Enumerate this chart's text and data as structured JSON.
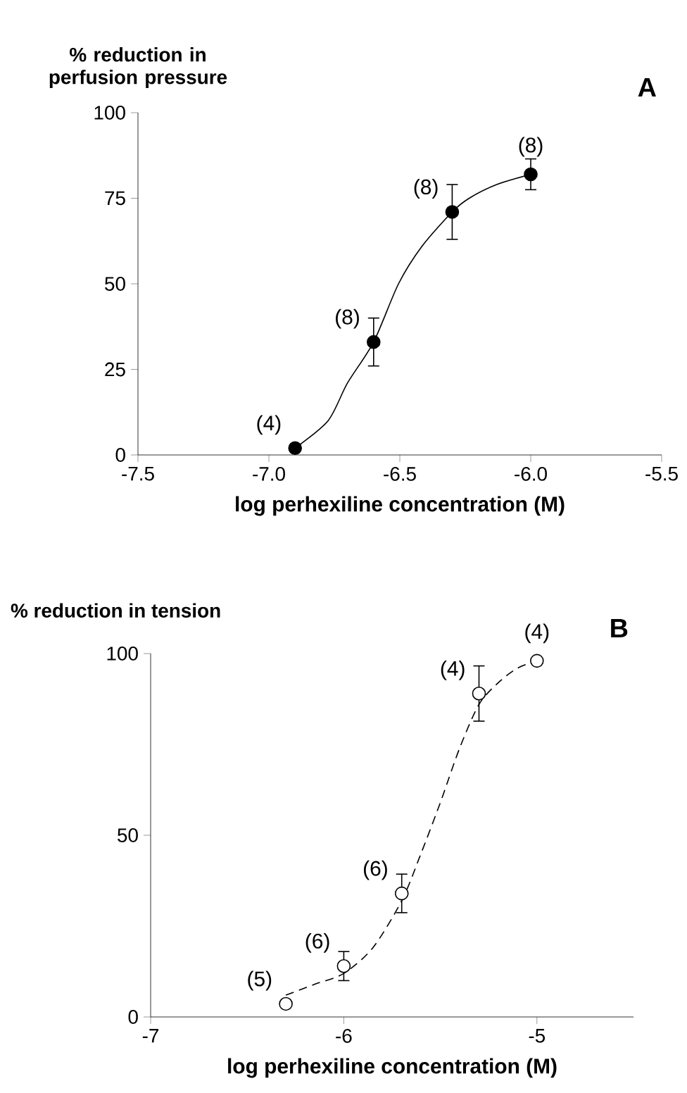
{
  "chart_data": [
    {
      "type": "scatter",
      "ylabel": "% reduction in perfusion pressure",
      "xlabel": "log perhexiline concentration (M)",
      "xlim": [
        -7.5,
        -5.5
      ],
      "ylim": [
        0,
        100
      ],
      "xticks": [
        {
          "value": -7.5,
          "label": "-7.5"
        },
        {
          "value": -7.0,
          "label": "-7.0"
        },
        {
          "value": -6.5,
          "label": "-6.5"
        },
        {
          "value": -6.0,
          "label": "-6.0"
        },
        {
          "value": -5.5,
          "label": "-5.5"
        }
      ],
      "yticks": [
        0,
        25,
        50,
        75,
        100
      ],
      "annotations": [
        "A",
        {
          "text": "(4)",
          "x": -6.9,
          "y": 2
        },
        {
          "text": "(8)",
          "x": -6.6,
          "y": 33
        },
        {
          "text": "(8)",
          "x": -6.3,
          "y": 71
        },
        {
          "text": "(8)",
          "x": -6.0,
          "y": 82
        }
      ],
      "series": [
        {
          "type": "line",
          "color": "#000000",
          "line_style": "solid",
          "marker": "none",
          "x": [
            -6.9,
            -6.774,
            -6.7,
            -6.6,
            -6.505,
            -6.415,
            -6.3,
            -6.235,
            -6.13,
            -6.0
          ],
          "values": [
            2,
            10,
            21,
            33,
            50,
            61,
            71,
            75,
            79,
            82
          ]
        },
        {
          "color": "#000000",
          "marker": "circle",
          "x": [
            -6.9,
            -6.6,
            -6.3,
            -6.0
          ],
          "values": [
            2,
            33,
            71,
            82
          ],
          "errors": [
            null,
            7,
            8,
            4.5
          ]
        }
      ]
    },
    {
      "type": "scatter",
      "ylabel": "% reduction in tension",
      "xlabel": "log perhexiline concentration (M)",
      "xlim": [
        -7,
        -4.5
      ],
      "ylim": [
        0,
        100
      ],
      "xticks": [
        -7,
        -6,
        -5
      ],
      "yticks": [
        0,
        50,
        100
      ],
      "annotations": [
        "B",
        {
          "text": "(5)",
          "x": -6.3,
          "y": 3.6
        },
        {
          "text": "(6)",
          "x": -6.0,
          "y": 14
        },
        {
          "text": "(6)",
          "x": -5.7,
          "y": 34
        },
        {
          "text": "(4)",
          "x": -5.3,
          "y": 89
        },
        {
          "text": "(4)",
          "x": -5.0,
          "y": 98
        }
      ],
      "series": [
        {
          "type": "line",
          "color": "#000000",
          "line_style": "dashed",
          "marker": "none",
          "x": [
            -6.3,
            -6.15,
            -6.0,
            -5.85,
            -5.7,
            -5.6,
            -5.5,
            -5.4,
            -5.3,
            -5.2,
            -5.1,
            -5.0
          ],
          "values": [
            6,
            9,
            12,
            19,
            32,
            45,
            59,
            74,
            86,
            92,
            96,
            98
          ]
        },
        {
          "color": "#ffffff",
          "marker": "circle",
          "x": [
            -6.3,
            -6.0,
            -5.7,
            -5.3,
            -5.0
          ],
          "values": [
            3.6,
            14,
            34,
            89,
            98
          ],
          "errors": [
            null,
            4,
            5.3,
            7.6,
            null
          ]
        }
      ]
    }
  ]
}
